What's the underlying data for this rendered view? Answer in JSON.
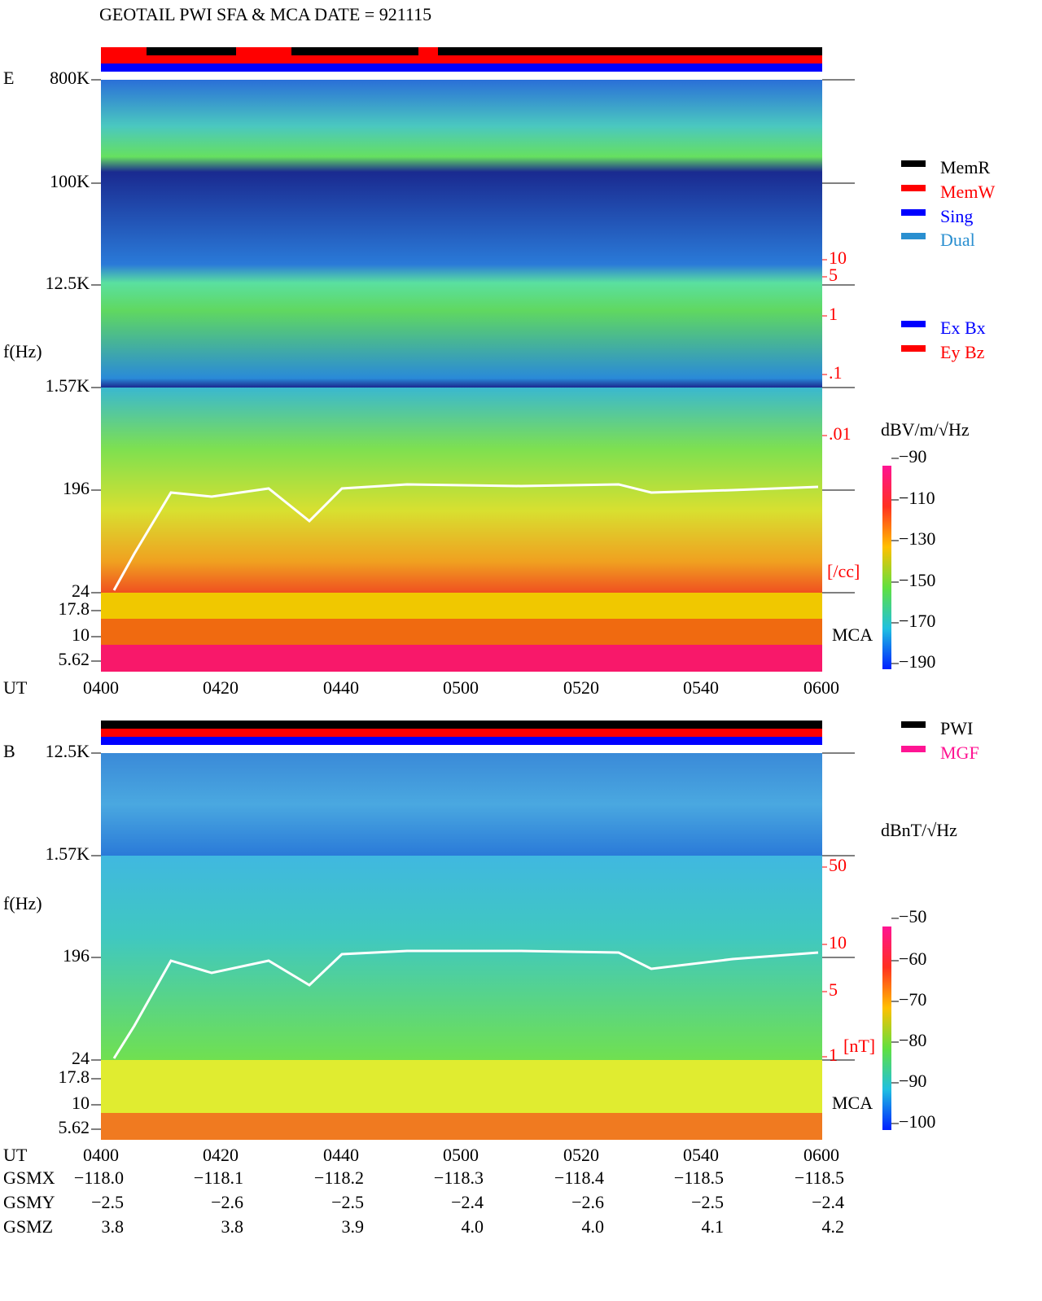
{
  "title": "GEOTAIL  PWI SFA & MCA   DATE = 921115",
  "panels": [
    {
      "label": "E",
      "y_axis_label": "f(Hz)",
      "freq_ticks": [
        "800K",
        "100K",
        "12.5K",
        "1.57K",
        "196",
        "24",
        "17.8",
        "10",
        "5.62"
      ],
      "x_axis_label": "UT",
      "time_ticks": [
        "0400",
        "0420",
        "0440",
        "0500",
        "0520",
        "0540",
        "0600"
      ],
      "density_ticks": [
        "10",
        "5",
        "1",
        ".1",
        ".01"
      ],
      "density_unit": "[/cc]",
      "mca_label": "MCA",
      "legends": [
        {
          "name": "MemR",
          "color": "#000000"
        },
        {
          "name": "MemW",
          "color": "#ff0000"
        },
        {
          "name": "Sing",
          "color": "#0000ff"
        },
        {
          "name": "Dual",
          "color": "#2a8fd0"
        },
        {
          "name": "Ex Bx",
          "color": "#0000ff"
        },
        {
          "name": "Ey Bz",
          "color": "#ff0000"
        }
      ],
      "colorbar": {
        "unit": "dBV/m/√Hz",
        "ticks": [
          "−90",
          "−110",
          "−130",
          "−150",
          "−170",
          "−190"
        ]
      }
    },
    {
      "label": "B",
      "y_axis_label": "f(Hz)",
      "freq_ticks": [
        "12.5K",
        "1.57K",
        "196",
        "24",
        "17.8",
        "10",
        "5.62"
      ],
      "x_axis_label": "UT",
      "time_ticks": [
        "0400",
        "0420",
        "0440",
        "0500",
        "0520",
        "0540",
        "0600"
      ],
      "density_ticks": [
        "50",
        "10",
        "5",
        "1"
      ],
      "density_unit": "[nT]",
      "mca_label": "MCA",
      "legends": [
        {
          "name": "PWI",
          "color": "#000000"
        },
        {
          "name": "MGF",
          "color": "#ff1493"
        }
      ],
      "colorbar": {
        "unit": "dBnT/√Hz",
        "ticks": [
          "−50",
          "−60",
          "−70",
          "−80",
          "−90",
          "−100"
        ]
      }
    }
  ],
  "orbit": {
    "rows": [
      {
        "label": "GSMX",
        "values": [
          "−118.0",
          "−118.1",
          "−118.2",
          "−118.3",
          "−118.4",
          "−118.5",
          "−118.5"
        ]
      },
      {
        "label": "GSMY",
        "values": [
          "−2.5",
          "−2.6",
          "−2.5",
          "−2.4",
          "−2.6",
          "−2.5",
          "−2.4"
        ]
      },
      {
        "label": "GSMZ",
        "values": [
          "3.8",
          "3.8",
          "3.9",
          "4.0",
          "4.0",
          "4.1",
          "4.2"
        ]
      }
    ]
  }
}
